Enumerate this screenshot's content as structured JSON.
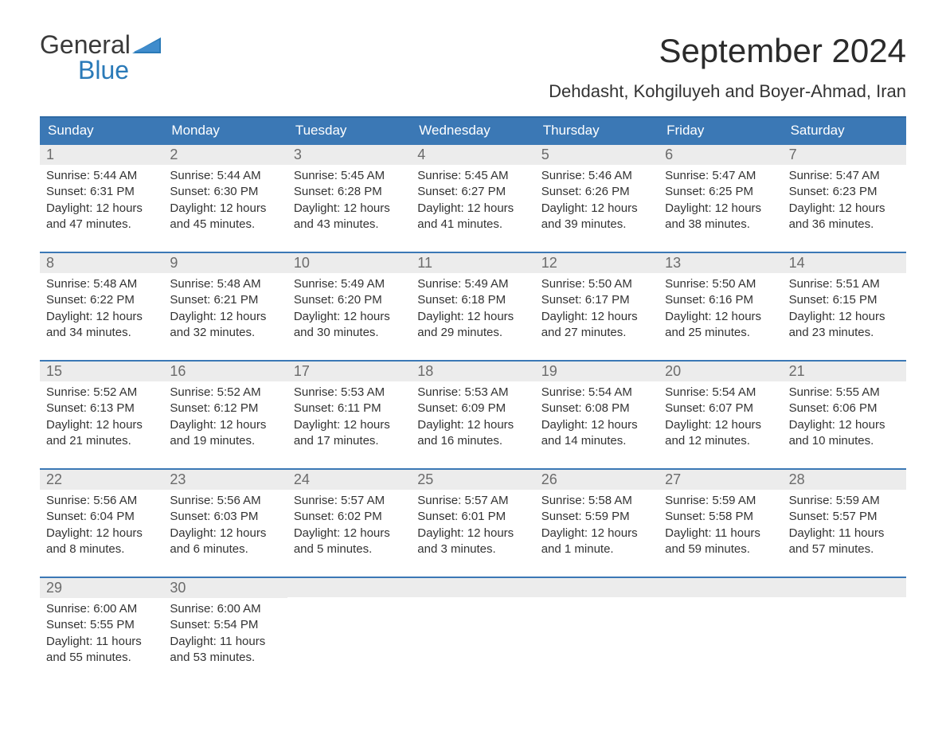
{
  "logo": {
    "top": "General",
    "bottom": "Blue"
  },
  "title": "September 2024",
  "location": "Dehdasht, Kohgiluyeh and Boyer-Ahmad, Iran",
  "weekdays": [
    "Sunday",
    "Monday",
    "Tuesday",
    "Wednesday",
    "Thursday",
    "Friday",
    "Saturday"
  ],
  "colors": {
    "header_bg": "#3b78b5",
    "header_border": "#2f6aa5",
    "row_border": "#3b78b5",
    "daynum_bg": "#ececec",
    "daynum_text": "#6b6b6b",
    "body_text": "#333333",
    "logo_blue": "#2a7ab8",
    "background": "#ffffff"
  },
  "typography": {
    "title_fontsize": 42,
    "location_fontsize": 22,
    "weekday_fontsize": 17,
    "daynum_fontsize": 18,
    "body_fontsize": 15,
    "font_family": "Arial"
  },
  "layout": {
    "columns": 7,
    "rows": 5,
    "cell_gap_bottom": 24
  },
  "weeks": [
    [
      {
        "n": "1",
        "sunrise": "Sunrise: 5:44 AM",
        "sunset": "Sunset: 6:31 PM",
        "dl1": "Daylight: 12 hours",
        "dl2": "and 47 minutes."
      },
      {
        "n": "2",
        "sunrise": "Sunrise: 5:44 AM",
        "sunset": "Sunset: 6:30 PM",
        "dl1": "Daylight: 12 hours",
        "dl2": "and 45 minutes."
      },
      {
        "n": "3",
        "sunrise": "Sunrise: 5:45 AM",
        "sunset": "Sunset: 6:28 PM",
        "dl1": "Daylight: 12 hours",
        "dl2": "and 43 minutes."
      },
      {
        "n": "4",
        "sunrise": "Sunrise: 5:45 AM",
        "sunset": "Sunset: 6:27 PM",
        "dl1": "Daylight: 12 hours",
        "dl2": "and 41 minutes."
      },
      {
        "n": "5",
        "sunrise": "Sunrise: 5:46 AM",
        "sunset": "Sunset: 6:26 PM",
        "dl1": "Daylight: 12 hours",
        "dl2": "and 39 minutes."
      },
      {
        "n": "6",
        "sunrise": "Sunrise: 5:47 AM",
        "sunset": "Sunset: 6:25 PM",
        "dl1": "Daylight: 12 hours",
        "dl2": "and 38 minutes."
      },
      {
        "n": "7",
        "sunrise": "Sunrise: 5:47 AM",
        "sunset": "Sunset: 6:23 PM",
        "dl1": "Daylight: 12 hours",
        "dl2": "and 36 minutes."
      }
    ],
    [
      {
        "n": "8",
        "sunrise": "Sunrise: 5:48 AM",
        "sunset": "Sunset: 6:22 PM",
        "dl1": "Daylight: 12 hours",
        "dl2": "and 34 minutes."
      },
      {
        "n": "9",
        "sunrise": "Sunrise: 5:48 AM",
        "sunset": "Sunset: 6:21 PM",
        "dl1": "Daylight: 12 hours",
        "dl2": "and 32 minutes."
      },
      {
        "n": "10",
        "sunrise": "Sunrise: 5:49 AM",
        "sunset": "Sunset: 6:20 PM",
        "dl1": "Daylight: 12 hours",
        "dl2": "and 30 minutes."
      },
      {
        "n": "11",
        "sunrise": "Sunrise: 5:49 AM",
        "sunset": "Sunset: 6:18 PM",
        "dl1": "Daylight: 12 hours",
        "dl2": "and 29 minutes."
      },
      {
        "n": "12",
        "sunrise": "Sunrise: 5:50 AM",
        "sunset": "Sunset: 6:17 PM",
        "dl1": "Daylight: 12 hours",
        "dl2": "and 27 minutes."
      },
      {
        "n": "13",
        "sunrise": "Sunrise: 5:50 AM",
        "sunset": "Sunset: 6:16 PM",
        "dl1": "Daylight: 12 hours",
        "dl2": "and 25 minutes."
      },
      {
        "n": "14",
        "sunrise": "Sunrise: 5:51 AM",
        "sunset": "Sunset: 6:15 PM",
        "dl1": "Daylight: 12 hours",
        "dl2": "and 23 minutes."
      }
    ],
    [
      {
        "n": "15",
        "sunrise": "Sunrise: 5:52 AM",
        "sunset": "Sunset: 6:13 PM",
        "dl1": "Daylight: 12 hours",
        "dl2": "and 21 minutes."
      },
      {
        "n": "16",
        "sunrise": "Sunrise: 5:52 AM",
        "sunset": "Sunset: 6:12 PM",
        "dl1": "Daylight: 12 hours",
        "dl2": "and 19 minutes."
      },
      {
        "n": "17",
        "sunrise": "Sunrise: 5:53 AM",
        "sunset": "Sunset: 6:11 PM",
        "dl1": "Daylight: 12 hours",
        "dl2": "and 17 minutes."
      },
      {
        "n": "18",
        "sunrise": "Sunrise: 5:53 AM",
        "sunset": "Sunset: 6:09 PM",
        "dl1": "Daylight: 12 hours",
        "dl2": "and 16 minutes."
      },
      {
        "n": "19",
        "sunrise": "Sunrise: 5:54 AM",
        "sunset": "Sunset: 6:08 PM",
        "dl1": "Daylight: 12 hours",
        "dl2": "and 14 minutes."
      },
      {
        "n": "20",
        "sunrise": "Sunrise: 5:54 AM",
        "sunset": "Sunset: 6:07 PM",
        "dl1": "Daylight: 12 hours",
        "dl2": "and 12 minutes."
      },
      {
        "n": "21",
        "sunrise": "Sunrise: 5:55 AM",
        "sunset": "Sunset: 6:06 PM",
        "dl1": "Daylight: 12 hours",
        "dl2": "and 10 minutes."
      }
    ],
    [
      {
        "n": "22",
        "sunrise": "Sunrise: 5:56 AM",
        "sunset": "Sunset: 6:04 PM",
        "dl1": "Daylight: 12 hours",
        "dl2": "and 8 minutes."
      },
      {
        "n": "23",
        "sunrise": "Sunrise: 5:56 AM",
        "sunset": "Sunset: 6:03 PM",
        "dl1": "Daylight: 12 hours",
        "dl2": "and 6 minutes."
      },
      {
        "n": "24",
        "sunrise": "Sunrise: 5:57 AM",
        "sunset": "Sunset: 6:02 PM",
        "dl1": "Daylight: 12 hours",
        "dl2": "and 5 minutes."
      },
      {
        "n": "25",
        "sunrise": "Sunrise: 5:57 AM",
        "sunset": "Sunset: 6:01 PM",
        "dl1": "Daylight: 12 hours",
        "dl2": "and 3 minutes."
      },
      {
        "n": "26",
        "sunrise": "Sunrise: 5:58 AM",
        "sunset": "Sunset: 5:59 PM",
        "dl1": "Daylight: 12 hours",
        "dl2": "and 1 minute."
      },
      {
        "n": "27",
        "sunrise": "Sunrise: 5:59 AM",
        "sunset": "Sunset: 5:58 PM",
        "dl1": "Daylight: 11 hours",
        "dl2": "and 59 minutes."
      },
      {
        "n": "28",
        "sunrise": "Sunrise: 5:59 AM",
        "sunset": "Sunset: 5:57 PM",
        "dl1": "Daylight: 11 hours",
        "dl2": "and 57 minutes."
      }
    ],
    [
      {
        "n": "29",
        "sunrise": "Sunrise: 6:00 AM",
        "sunset": "Sunset: 5:55 PM",
        "dl1": "Daylight: 11 hours",
        "dl2": "and 55 minutes."
      },
      {
        "n": "30",
        "sunrise": "Sunrise: 6:00 AM",
        "sunset": "Sunset: 5:54 PM",
        "dl1": "Daylight: 11 hours",
        "dl2": "and 53 minutes."
      },
      null,
      null,
      null,
      null,
      null
    ]
  ]
}
